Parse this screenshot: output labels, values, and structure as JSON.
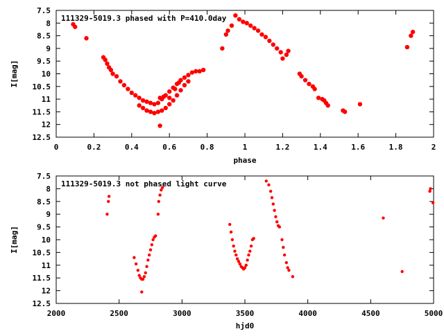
{
  "chart_data": [
    {
      "type": "scatter",
      "title": "111329-5019.3 phased with P=410.0day",
      "xlabel": "phase",
      "ylabel": "I[mag]",
      "xlim": [
        0,
        2
      ],
      "ylim": [
        12.5,
        7.5
      ],
      "y_inverted": true,
      "xticks": [
        "0",
        "0.2",
        "0.4",
        "0.6",
        "0.8",
        "1",
        "1.2",
        "1.4",
        "1.6",
        "1.8",
        "2"
      ],
      "yticks": [
        "7.5",
        "8",
        "8.5",
        "9",
        "9.5",
        "10",
        "10.5",
        "11",
        "11.5",
        "12",
        "12.5"
      ],
      "marker_color": "#ff0000",
      "grid": false,
      "points": [
        [
          0.09,
          8.05
        ],
        [
          0.1,
          8.15
        ],
        [
          0.16,
          8.6
        ],
        [
          0.25,
          9.35
        ],
        [
          0.26,
          9.45
        ],
        [
          0.27,
          9.6
        ],
        [
          0.28,
          9.75
        ],
        [
          0.29,
          9.85
        ],
        [
          0.3,
          10.0
        ],
        [
          0.32,
          10.1
        ],
        [
          0.34,
          10.3
        ],
        [
          0.36,
          10.45
        ],
        [
          0.38,
          10.6
        ],
        [
          0.4,
          10.75
        ],
        [
          0.42,
          10.85
        ],
        [
          0.44,
          10.95
        ],
        [
          0.46,
          11.05
        ],
        [
          0.48,
          11.1
        ],
        [
          0.5,
          11.15
        ],
        [
          0.52,
          11.2
        ],
        [
          0.54,
          11.15
        ],
        [
          0.56,
          11.0
        ],
        [
          0.58,
          10.85
        ],
        [
          0.6,
          10.7
        ],
        [
          0.62,
          10.55
        ],
        [
          0.64,
          10.4
        ],
        [
          0.66,
          10.25
        ],
        [
          0.68,
          10.15
        ],
        [
          0.7,
          10.05
        ],
        [
          0.72,
          9.95
        ],
        [
          0.74,
          9.9
        ],
        [
          0.76,
          9.9
        ],
        [
          0.78,
          9.85
        ],
        [
          0.44,
          11.25
        ],
        [
          0.46,
          11.35
        ],
        [
          0.48,
          11.45
        ],
        [
          0.5,
          11.5
        ],
        [
          0.52,
          11.55
        ],
        [
          0.54,
          11.5
        ],
        [
          0.56,
          11.45
        ],
        [
          0.58,
          11.35
        ],
        [
          0.6,
          11.2
        ],
        [
          0.62,
          11.05
        ],
        [
          0.64,
          10.85
        ],
        [
          0.66,
          10.65
        ],
        [
          0.68,
          10.45
        ],
        [
          0.7,
          10.3
        ],
        [
          0.55,
          12.05
        ],
        [
          0.55,
          10.95
        ],
        [
          0.57,
          10.9
        ],
        [
          0.6,
          10.95
        ],
        [
          0.63,
          10.6
        ],
        [
          0.65,
          10.35
        ],
        [
          0.88,
          9.0
        ],
        [
          0.9,
          8.45
        ],
        [
          0.91,
          8.3
        ],
        [
          0.93,
          8.1
        ],
        [
          0.95,
          7.7
        ],
        [
          0.97,
          7.85
        ],
        [
          0.99,
          7.95
        ],
        [
          1.01,
          8.0
        ],
        [
          1.03,
          8.1
        ],
        [
          1.05,
          8.2
        ],
        [
          1.07,
          8.3
        ],
        [
          1.09,
          8.45
        ],
        [
          1.11,
          8.55
        ],
        [
          1.13,
          8.7
        ],
        [
          1.15,
          8.85
        ],
        [
          1.17,
          9.0
        ],
        [
          1.19,
          9.15
        ],
        [
          1.2,
          9.4
        ],
        [
          1.22,
          9.25
        ],
        [
          1.23,
          9.1
        ],
        [
          1.29,
          10.0
        ],
        [
          1.3,
          10.1
        ],
        [
          1.32,
          10.25
        ],
        [
          1.34,
          10.4
        ],
        [
          1.36,
          10.5
        ],
        [
          1.37,
          10.6
        ],
        [
          1.39,
          10.95
        ],
        [
          1.41,
          11.0
        ],
        [
          1.42,
          11.05
        ],
        [
          1.43,
          11.15
        ],
        [
          1.44,
          11.25
        ],
        [
          1.52,
          11.45
        ],
        [
          1.53,
          11.5
        ],
        [
          1.61,
          11.2
        ],
        [
          1.86,
          8.95
        ],
        [
          1.88,
          8.5
        ],
        [
          1.89,
          8.35
        ]
      ]
    },
    {
      "type": "scatter",
      "title": "111329-5019.3 not phased light curve",
      "xlabel": "hjd0",
      "ylabel": "I[mag]",
      "xlim": [
        2000,
        5000
      ],
      "ylim": [
        12.5,
        7.5
      ],
      "y_inverted": true,
      "xticks": [
        "2000",
        "2500",
        "3000",
        "3500",
        "4000",
        "4500",
        "5000"
      ],
      "yticks": [
        "7.5",
        "8",
        "8.5",
        "9",
        "9.5",
        "10",
        "10.5",
        "11",
        "11.5",
        "12",
        "12.5"
      ],
      "marker_color": "#ff0000",
      "grid": false,
      "points": [
        [
          2405,
          9.0
        ],
        [
          2415,
          8.5
        ],
        [
          2420,
          8.3
        ],
        [
          2620,
          10.7
        ],
        [
          2635,
          10.95
        ],
        [
          2650,
          11.2
        ],
        [
          2660,
          11.4
        ],
        [
          2670,
          11.5
        ],
        [
          2680,
          11.55
        ],
        [
          2690,
          11.55
        ],
        [
          2700,
          11.45
        ],
        [
          2710,
          11.3
        ],
        [
          2720,
          11.05
        ],
        [
          2730,
          10.8
        ],
        [
          2740,
          10.6
        ],
        [
          2750,
          10.4
        ],
        [
          2760,
          10.2
        ],
        [
          2770,
          10.0
        ],
        [
          2780,
          9.9
        ],
        [
          2790,
          9.85
        ],
        [
          2680,
          12.05
        ],
        [
          2810,
          9.0
        ],
        [
          2815,
          8.5
        ],
        [
          2825,
          8.25
        ],
        [
          2835,
          8.05
        ],
        [
          2845,
          7.95
        ],
        [
          3380,
          9.4
        ],
        [
          3390,
          9.7
        ],
        [
          3400,
          10.0
        ],
        [
          3410,
          10.25
        ],
        [
          3420,
          10.45
        ],
        [
          3430,
          10.6
        ],
        [
          3440,
          10.75
        ],
        [
          3450,
          10.85
        ],
        [
          3460,
          10.95
        ],
        [
          3470,
          11.05
        ],
        [
          3480,
          11.1
        ],
        [
          3490,
          11.15
        ],
        [
          3500,
          11.1
        ],
        [
          3510,
          11.0
        ],
        [
          3520,
          10.8
        ],
        [
          3530,
          10.6
        ],
        [
          3540,
          10.45
        ],
        [
          3550,
          10.25
        ],
        [
          3560,
          10.0
        ],
        [
          3570,
          9.95
        ],
        [
          3670,
          7.7
        ],
        [
          3690,
          7.85
        ],
        [
          3705,
          8.1
        ],
        [
          3715,
          8.35
        ],
        [
          3725,
          8.6
        ],
        [
          3735,
          8.85
        ],
        [
          3745,
          9.1
        ],
        [
          3755,
          9.3
        ],
        [
          3765,
          9.45
        ],
        [
          3775,
          9.5
        ],
        [
          3795,
          10.0
        ],
        [
          3805,
          10.3
        ],
        [
          3815,
          10.6
        ],
        [
          3830,
          10.9
        ],
        [
          3840,
          11.1
        ],
        [
          3850,
          11.2
        ],
        [
          3880,
          11.45
        ],
        [
          4600,
          9.15
        ],
        [
          4750,
          11.25
        ],
        [
          4970,
          8.1
        ],
        [
          4975,
          8.0
        ],
        [
          4995,
          8.55
        ]
      ]
    }
  ]
}
